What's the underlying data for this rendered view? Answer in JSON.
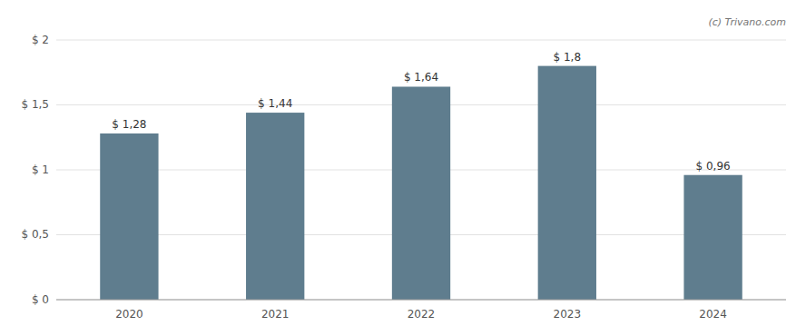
{
  "chart_data": {
    "type": "bar",
    "categories": [
      2020,
      2021,
      2022,
      2023,
      2024
    ],
    "values": [
      1.28,
      1.44,
      1.64,
      1.8,
      0.96
    ],
    "value_labels": [
      "$ 1,28",
      "$ 1,44",
      "$ 1,64",
      "$ 1,8",
      "$ 0,96"
    ],
    "data_labels": true,
    "color": "#5f7d8e",
    "ylim": [
      0,
      2.0
    ],
    "yticks": [
      {
        "value": 0,
        "label": "$ 0"
      },
      {
        "value": 0.5,
        "label": "$ 0,5"
      },
      {
        "value": 1.0,
        "label": "$ 1"
      },
      {
        "value": 1.5,
        "label": "$ 1,5"
      },
      {
        "value": 2.0,
        "label": "$ 2"
      }
    ],
    "grid": true,
    "annotations": [
      "(c) Trivano.com"
    ]
  }
}
